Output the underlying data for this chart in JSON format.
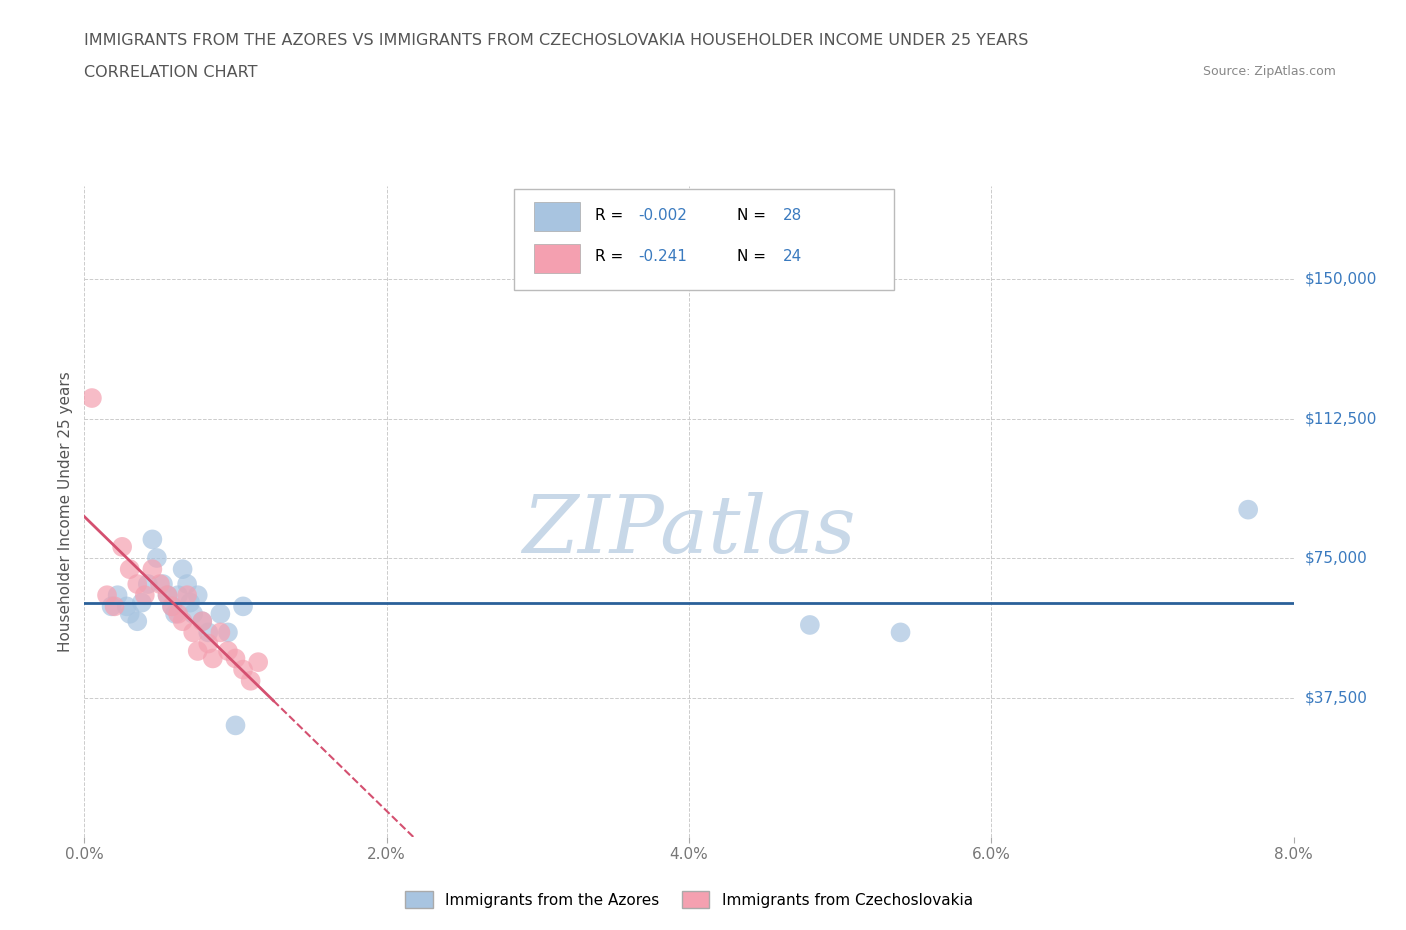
{
  "title_line1": "IMMIGRANTS FROM THE AZORES VS IMMIGRANTS FROM CZECHOSLOVAKIA HOUSEHOLDER INCOME UNDER 25 YEARS",
  "title_line2": "CORRELATION CHART",
  "source_text": "Source: ZipAtlas.com",
  "watermark": "ZIPatlas",
  "ylabel": "Householder Income Under 25 years",
  "xlim": [
    0.0,
    0.08
  ],
  "ylim": [
    0,
    175000
  ],
  "xtick_labels": [
    "0.0%",
    "2.0%",
    "4.0%",
    "6.0%",
    "8.0%"
  ],
  "xtick_vals": [
    0.0,
    0.02,
    0.04,
    0.06,
    0.08
  ],
  "ytick_vals": [
    0,
    37500,
    75000,
    112500,
    150000
  ],
  "ytick_labels": [
    "",
    "$37,500",
    "$75,000",
    "$112,500",
    "$150,000"
  ],
  "azores_color": "#a8c4e0",
  "czech_color": "#f4a0b0",
  "azores_line_color": "#2a6099",
  "czech_line_color": "#d45070",
  "r_azores": "-0.002",
  "n_azores": "28",
  "r_czech": "-0.241",
  "n_czech": "24",
  "legend_label_azores": "Immigrants from the Azores",
  "legend_label_czech": "Immigrants from Czechoslovakia",
  "azores_x": [
    0.0018,
    0.0022,
    0.0028,
    0.003,
    0.0035,
    0.0038,
    0.0042,
    0.0045,
    0.0048,
    0.0052,
    0.0055,
    0.0058,
    0.006,
    0.0062,
    0.0065,
    0.0068,
    0.007,
    0.0072,
    0.0075,
    0.0078,
    0.0082,
    0.009,
    0.0095,
    0.01,
    0.0105,
    0.048,
    0.054,
    0.077
  ],
  "azores_y": [
    62000,
    65000,
    62000,
    60000,
    58000,
    63000,
    68000,
    80000,
    75000,
    68000,
    65000,
    62000,
    60000,
    65000,
    72000,
    68000,
    63000,
    60000,
    65000,
    58000,
    55000,
    60000,
    55000,
    30000,
    62000,
    57000,
    55000,
    88000
  ],
  "czech_x": [
    0.0015,
    0.002,
    0.0025,
    0.003,
    0.0035,
    0.004,
    0.0045,
    0.005,
    0.0055,
    0.0058,
    0.0062,
    0.0065,
    0.0068,
    0.0072,
    0.0075,
    0.0078,
    0.0082,
    0.0085,
    0.009,
    0.0095,
    0.01,
    0.0105,
    0.011,
    0.0115
  ],
  "czech_y": [
    65000,
    62000,
    78000,
    72000,
    68000,
    65000,
    72000,
    68000,
    65000,
    62000,
    60000,
    58000,
    65000,
    55000,
    50000,
    58000,
    52000,
    48000,
    55000,
    50000,
    48000,
    45000,
    42000,
    47000
  ],
  "czech_outlier_x": [
    0.0005
  ],
  "czech_outlier_y": [
    118000
  ],
  "grid_color": "#cccccc",
  "background_color": "#ffffff",
  "title_color": "#555555",
  "axis_label_color": "#555555",
  "tick_color_y": "#3a7abf",
  "tick_color_x": "#777777",
  "legend_color": "#3a7abf",
  "watermark_color": "#c8d8e8"
}
